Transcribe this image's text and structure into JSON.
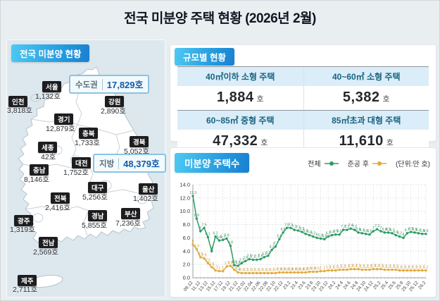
{
  "title": "전국 미분양 주택 현황  (2026년 2월)",
  "map_panel": {
    "header": "전국 미분양 현황",
    "callouts": {
      "capital": {
        "label": "수도권",
        "value": "17,829호"
      },
      "regional": {
        "label": "지방",
        "value": "48,379호"
      }
    },
    "regions": [
      {
        "key": "seoul",
        "name": "서울",
        "value": "1,132호"
      },
      {
        "key": "incheon",
        "name": "인천",
        "value": "3,818호"
      },
      {
        "key": "gyeonggi",
        "name": "경기",
        "value": "12,879호"
      },
      {
        "key": "gangwon",
        "name": "강원",
        "value": "2,890호"
      },
      {
        "key": "chungbuk",
        "name": "충북",
        "value": "1,733호"
      },
      {
        "key": "gyeongbuk",
        "name": "경북",
        "value": "5,052호"
      },
      {
        "key": "sejong",
        "name": "세종",
        "value": "42호"
      },
      {
        "key": "daejeon",
        "name": "대전",
        "value": "1,752호"
      },
      {
        "key": "chungnam",
        "name": "충남",
        "value": "8,146호"
      },
      {
        "key": "daegu",
        "name": "대구",
        "value": "5,256호"
      },
      {
        "key": "ulsan",
        "name": "울산",
        "value": "1,402호"
      },
      {
        "key": "jeonbuk",
        "name": "전북",
        "value": "2,416호"
      },
      {
        "key": "gyeongnam",
        "name": "경남",
        "value": "5,855호"
      },
      {
        "key": "busan",
        "name": "부산",
        "value": "7,236호"
      },
      {
        "key": "gwangju",
        "name": "광주",
        "value": "1,319호"
      },
      {
        "key": "jeonnam",
        "name": "전남",
        "value": "2,569호"
      },
      {
        "key": "jeju",
        "name": "제주",
        "value": "2,711호"
      }
    ]
  },
  "scale_panel": {
    "header": "규모별 현황",
    "cells": [
      {
        "label": "40㎡이하 소형 주택",
        "value": "1,884",
        "unit": "호"
      },
      {
        "label": "40~60㎡ 소형 주택",
        "value": "5,382",
        "unit": "호"
      },
      {
        "label": "60~85㎡ 중형 주택",
        "value": "47,332",
        "unit": "호"
      },
      {
        "label": "85㎡초과 대형 주택",
        "value": "11,610",
        "unit": "호"
      }
    ]
  },
  "chart_panel": {
    "header": "미분양 주택수",
    "units_note": "(단위:만 호)"
  },
  "chart_data": {
    "type": "line",
    "title": "미분양 주택수",
    "ylabel": "만 호",
    "ylim": [
      0,
      14
    ],
    "ytick_step": 2,
    "grid": true,
    "legend_position": "top-right",
    "x": [
      "09.12",
      "10.12",
      "11.12",
      "12.12",
      "13.12",
      "14.12",
      "15.12",
      "16.12",
      "17.12",
      "18.12",
      "19.12",
      "20.12",
      "21.12",
      "22.01",
      "22.02",
      "22.03",
      "22.04",
      "22.05",
      "22.06",
      "22.07",
      "22.08",
      "22.09",
      "22.10",
      "22.11",
      "22.12",
      "23.1",
      "23.2",
      "23.3",
      "23.4",
      "23.5",
      "23.6",
      "23.7",
      "23.8",
      "23.9",
      "23.10",
      "23.11",
      "23.12",
      "24.1",
      "24.2",
      "24.3",
      "24.4",
      "24.5",
      "24.6",
      "24.7",
      "24.8",
      "24.9",
      "24.10",
      "24.11",
      "24.12",
      "25.1",
      "25.2",
      "25.3",
      "25.4",
      "25.5",
      "25.6",
      "25.7",
      "25.8",
      "25.9",
      "25.10",
      "25.11",
      "25.12",
      "26.1",
      "26.2"
    ],
    "ticks": [
      {
        "i": 0,
        "label": "09.12"
      },
      {
        "i": 2,
        "label": "11.12"
      },
      {
        "i": 4,
        "label": "13.12"
      },
      {
        "i": 6,
        "label": "15.12"
      },
      {
        "i": 8,
        "label": "17.12"
      },
      {
        "i": 10,
        "label": "19.12"
      },
      {
        "i": 12,
        "label": "21.12"
      },
      {
        "i": 14,
        "label": "22.02"
      },
      {
        "i": 16,
        "label": "22.04"
      },
      {
        "i": 18,
        "label": "22.06"
      },
      {
        "i": 20,
        "label": "22.08"
      },
      {
        "i": 22,
        "label": "22.10"
      },
      {
        "i": 24,
        "label": "22.12"
      },
      {
        "i": 26,
        "label": "23.2"
      },
      {
        "i": 28,
        "label": "23.4"
      },
      {
        "i": 30,
        "label": "23.6"
      },
      {
        "i": 32,
        "label": "23.8"
      },
      {
        "i": 34,
        "label": "23.10"
      },
      {
        "i": 36,
        "label": "23.12"
      },
      {
        "i": 38,
        "label": "24.2"
      },
      {
        "i": 40,
        "label": "24.4"
      },
      {
        "i": 42,
        "label": "24.6"
      },
      {
        "i": 44,
        "label": "24.8"
      },
      {
        "i": 46,
        "label": "24.10"
      },
      {
        "i": 48,
        "label": "24.12"
      },
      {
        "i": 50,
        "label": "25.2"
      },
      {
        "i": 52,
        "label": "25.4"
      },
      {
        "i": 54,
        "label": "25.6"
      },
      {
        "i": 56,
        "label": "25.8"
      },
      {
        "i": 58,
        "label": "25.10"
      },
      {
        "i": 60,
        "label": "25.12"
      },
      {
        "i": 62,
        "label": "26.2"
      }
    ],
    "series": [
      {
        "name": "전체",
        "color": "#2a9d64",
        "label_color": "#3a8a5d",
        "values": [
          12.3,
          8.9,
          7.0,
          7.5,
          6.1,
          4.0,
          6.2,
          5.6,
          5.7,
          5.9,
          4.8,
          1.9,
          1.8,
          2.2,
          2.5,
          2.8,
          2.7,
          2.7,
          2.8,
          3.1,
          3.3,
          4.2,
          4.7,
          5.8,
          6.8,
          7.5,
          7.5,
          7.2,
          7.1,
          6.9,
          6.6,
          6.4,
          6.2,
          6.0,
          5.9,
          5.8,
          6.2,
          6.4,
          6.5,
          6.5,
          7.2,
          7.2,
          7.4,
          7.2,
          6.8,
          6.7,
          6.6,
          6.5,
          7.0,
          7.3,
          7.0,
          6.8,
          6.8,
          6.7,
          6.4,
          6.2,
          6.0,
          6.7,
          6.9,
          6.8,
          6.7,
          6.6,
          6.6
        ]
      },
      {
        "name": "준공 후",
        "color": "#e2a93e",
        "label_color": "#c2922f",
        "values": [
          5.0,
          4.3,
          3.1,
          2.9,
          2.2,
          1.6,
          1.1,
          1.0,
          1.0,
          1.7,
          1.8,
          1.2,
          0.8,
          0.7,
          0.7,
          0.7,
          0.7,
          0.7,
          0.7,
          0.7,
          0.7,
          0.7,
          0.7,
          0.8,
          0.8,
          0.8,
          0.8,
          0.8,
          0.8,
          0.8,
          0.8,
          0.9,
          0.9,
          0.9,
          1.0,
          1.0,
          1.1,
          1.1,
          1.1,
          1.2,
          1.2,
          1.2,
          1.3,
          1.3,
          1.3,
          1.2,
          1.2,
          1.2,
          1.3,
          1.3,
          1.3,
          1.2,
          1.2,
          1.2,
          1.2,
          1.1,
          1.1,
          1.1,
          1.1,
          1.1,
          1.1,
          1.1,
          1.1
        ]
      }
    ]
  }
}
